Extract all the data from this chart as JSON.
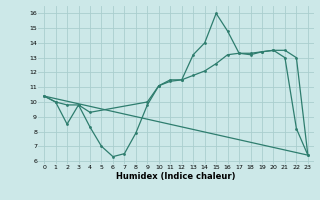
{
  "xlabel": "Humidex (Indice chaleur)",
  "bg_color": "#cce8e8",
  "grid_color": "#aacece",
  "line_color": "#2e7d6e",
  "xlim": [
    -0.5,
    23.5
  ],
  "ylim": [
    5.8,
    16.5
  ],
  "yticks": [
    6,
    7,
    8,
    9,
    10,
    11,
    12,
    13,
    14,
    15,
    16
  ],
  "xticks": [
    0,
    1,
    2,
    3,
    4,
    5,
    6,
    7,
    8,
    9,
    10,
    11,
    12,
    13,
    14,
    15,
    16,
    17,
    18,
    19,
    20,
    21,
    22,
    23
  ],
  "series1_x": [
    0,
    1,
    2,
    3,
    4,
    5,
    6,
    7,
    8,
    9,
    10,
    11,
    12,
    13,
    14,
    15,
    16,
    17,
    18,
    19,
    20,
    21,
    22,
    23
  ],
  "series1_y": [
    10.4,
    10.0,
    8.5,
    9.8,
    8.3,
    7.0,
    6.3,
    6.5,
    7.9,
    9.8,
    11.1,
    11.4,
    11.5,
    13.2,
    14.0,
    16.0,
    14.8,
    13.3,
    13.2,
    13.4,
    13.5,
    13.0,
    8.2,
    6.4
  ],
  "series2_x": [
    0,
    1,
    2,
    3,
    4,
    9,
    10,
    11,
    12,
    13,
    14,
    15,
    16,
    17,
    18,
    19,
    20,
    21,
    22,
    23
  ],
  "series2_y": [
    10.4,
    10.0,
    9.8,
    9.8,
    9.3,
    10.0,
    11.1,
    11.5,
    11.5,
    11.8,
    12.1,
    12.6,
    13.2,
    13.3,
    13.3,
    13.4,
    13.5,
    13.5,
    13.0,
    6.4
  ],
  "series3_x": [
    0,
    23
  ],
  "series3_y": [
    10.4,
    6.4
  ]
}
